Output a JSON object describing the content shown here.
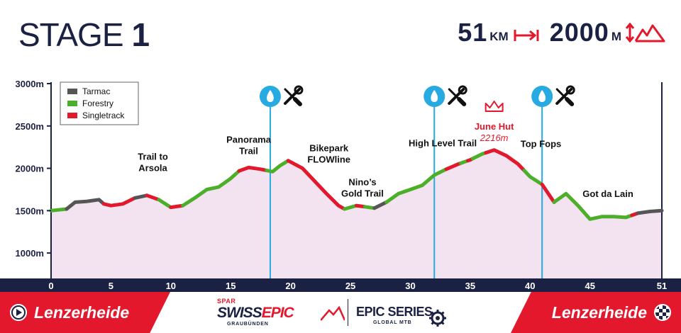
{
  "header": {
    "stage_word": "STAGE",
    "stage_number": "1",
    "distance_value": "51",
    "distance_unit": "KM",
    "distance_icon": "distance-arrow-icon",
    "climb_value": "2000",
    "climb_unit": "M",
    "climb_icon": "elevation-mountain-icon"
  },
  "footer": {
    "start_label": "Lenzerheide",
    "start_icon": "play-icon",
    "finish_label": "Lenzerheide",
    "finish_icon": "checkered-flag-icon",
    "sponsor_spar": "SPAR",
    "sponsor_swiss": "SWISS",
    "sponsor_epic": "EPIC",
    "sponsor_region": "GRAUBÜNDEN",
    "series_name": "EPIC SERIES",
    "series_sub": "GLOBAL MTB"
  },
  "colors": {
    "navy": "#1b2142",
    "red": "#e3182d",
    "tarmac": "#555555",
    "forestry": "#4caf2a",
    "singletrack": "#e3182d",
    "fill": "#f3e3f0",
    "water": "#27a9e1"
  },
  "chart_data": {
    "type": "area",
    "xlabel": "",
    "ylabel": "",
    "xlim": [
      0,
      51
    ],
    "ylim": [
      700,
      3000
    ],
    "x_ticks": [
      "0",
      "5",
      "10",
      "15",
      "20",
      "25",
      "30",
      "35",
      "40",
      "45",
      "51"
    ],
    "x_tick_values": [
      0,
      5,
      10,
      15,
      20,
      25,
      30,
      35,
      40,
      45,
      51
    ],
    "y_ticks": [
      "3000m",
      "2500m",
      "2000m",
      "1500m",
      "1000m"
    ],
    "y_tick_values": [
      3000,
      2500,
      2000,
      1500,
      1000
    ],
    "profile": {
      "x": [
        0,
        1.3,
        2,
        3,
        4,
        4.4,
        5,
        6,
        7,
        8,
        9,
        10,
        11,
        12,
        13,
        14,
        15,
        15.7,
        16.5,
        17.5,
        18.5,
        19.1,
        19.8,
        21,
        22,
        23,
        24,
        24.5,
        25.5,
        27,
        28,
        29,
        30,
        31,
        32,
        33,
        34,
        35,
        36,
        37,
        38,
        39,
        40,
        41,
        42,
        43,
        44,
        45,
        46,
        47,
        48,
        49,
        50,
        51
      ],
      "y": [
        1500,
        1520,
        1600,
        1610,
        1630,
        1580,
        1560,
        1580,
        1650,
        1680,
        1630,
        1540,
        1560,
        1650,
        1750,
        1780,
        1880,
        1970,
        2010,
        1990,
        1960,
        2030,
        2090,
        2000,
        1850,
        1700,
        1560,
        1520,
        1560,
        1530,
        1600,
        1700,
        1750,
        1800,
        1920,
        1990,
        2050,
        2100,
        2170,
        2216,
        2150,
        2050,
        1900,
        1810,
        1600,
        1700,
        1560,
        1400,
        1430,
        1430,
        1420,
        1470,
        1490,
        1500
      ]
    },
    "segments": [
      {
        "type": "Forestry",
        "x0": 0,
        "x1": 1.3
      },
      {
        "type": "Tarmac",
        "x0": 1.3,
        "x1": 4.4
      },
      {
        "type": "Singletrack",
        "x0": 4.4,
        "x1": 7
      },
      {
        "type": "Tarmac",
        "x0": 7,
        "x1": 8
      },
      {
        "type": "Singletrack",
        "x0": 8,
        "x1": 9
      },
      {
        "type": "Forestry",
        "x0": 9,
        "x1": 10
      },
      {
        "type": "Singletrack",
        "x0": 10,
        "x1": 11
      },
      {
        "type": "Forestry",
        "x0": 11,
        "x1": 15.7
      },
      {
        "type": "Singletrack",
        "x0": 15.7,
        "x1": 18
      },
      {
        "type": "Forestry",
        "x0": 18,
        "x1": 19.8
      },
      {
        "type": "Singletrack",
        "x0": 19.8,
        "x1": 24.5
      },
      {
        "type": "Forestry",
        "x0": 24.5,
        "x1": 25.5
      },
      {
        "type": "Singletrack",
        "x0": 25.5,
        "x1": 26.2
      },
      {
        "type": "Forestry",
        "x0": 26.2,
        "x1": 27
      },
      {
        "type": "Tarmac",
        "x0": 27,
        "x1": 28
      },
      {
        "type": "Forestry",
        "x0": 28,
        "x1": 33
      },
      {
        "type": "Singletrack",
        "x0": 33,
        "x1": 34.2
      },
      {
        "type": "Forestry",
        "x0": 34.2,
        "x1": 34.8
      },
      {
        "type": "Singletrack",
        "x0": 34.8,
        "x1": 35.2
      },
      {
        "type": "Forestry",
        "x0": 35.2,
        "x1": 36.3
      },
      {
        "type": "Singletrack",
        "x0": 36.3,
        "x1": 39.5
      },
      {
        "type": "Forestry",
        "x0": 39.5,
        "x1": 41
      },
      {
        "type": "Singletrack",
        "x0": 41,
        "x1": 42
      },
      {
        "type": "Forestry",
        "x0": 42,
        "x1": 48.5
      },
      {
        "type": "Singletrack",
        "x0": 48.5,
        "x1": 49
      },
      {
        "type": "Tarmac",
        "x0": 49,
        "x1": 51
      }
    ],
    "legend": {
      "placement": "top-left",
      "entries": [
        "Tarmac",
        "Forestry",
        "Singletrack"
      ]
    },
    "waypoints": [
      {
        "x": 18.3,
        "icons": [
          "water-drop-icon",
          "tools-icon"
        ]
      },
      {
        "x": 32,
        "icons": [
          "water-drop-icon",
          "tools-icon"
        ]
      },
      {
        "x": 41,
        "icons": [
          "water-drop-icon",
          "tools-icon"
        ]
      }
    ],
    "summit": {
      "name": "June Hut",
      "elevation": "2216m",
      "x": 37,
      "icon": "crown-icon"
    },
    "annotations": [
      {
        "text": [
          "Trail to",
          "Arsola"
        ],
        "x": 8.5,
        "y": 2100
      },
      {
        "text": [
          "Panorama",
          "Trail"
        ],
        "x": 16.5,
        "y": 2300
      },
      {
        "text": [
          "Bikepark",
          "FLOWline"
        ],
        "x": 23.2,
        "y": 2200
      },
      {
        "text": [
          "Nino’s",
          "Gold Trail"
        ],
        "x": 26,
        "y": 1800
      },
      {
        "text": [
          "High Level Trail"
        ],
        "x": 32.7,
        "y": 2260
      },
      {
        "text": [
          "Top Fops"
        ],
        "x": 40.9,
        "y": 2250
      },
      {
        "text": [
          "Got da Lain"
        ],
        "x": 46.5,
        "y": 1660
      }
    ]
  }
}
